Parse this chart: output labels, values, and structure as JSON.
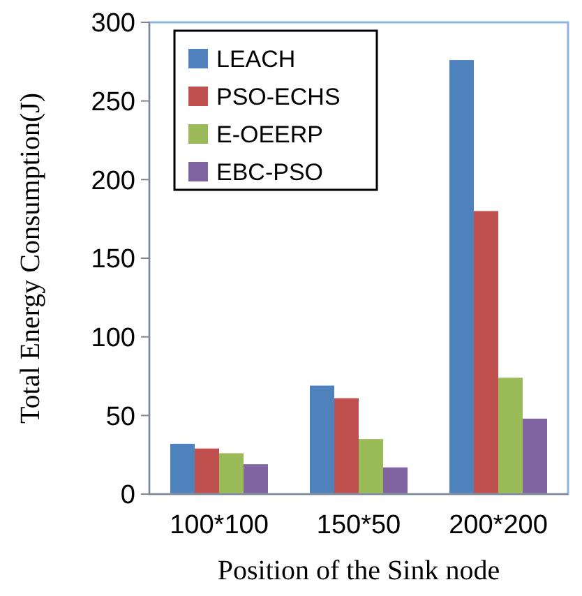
{
  "chart_data": {
    "type": "bar",
    "xlabel": "Position of the Sink node",
    "ylabel": "Total Energy Consumption(J)",
    "categories": [
      "100*100",
      "150*50",
      "200*200"
    ],
    "series": [
      {
        "name": "LEACH",
        "color": "#4f81bd",
        "values": [
          32,
          69,
          276
        ]
      },
      {
        "name": "PSO-ECHS",
        "color": "#c0504d",
        "values": [
          29,
          61,
          180
        ]
      },
      {
        "name": "E-OEERP",
        "color": "#9bbb59",
        "values": [
          26,
          35,
          74
        ]
      },
      {
        "name": "EBC-PSO",
        "color": "#8064a2",
        "values": [
          19,
          17,
          48
        ]
      }
    ],
    "ylim": [
      0,
      300
    ],
    "yticks": [
      0,
      50,
      100,
      150,
      200,
      250,
      300
    ],
    "grid": false,
    "legend": "top left"
  }
}
